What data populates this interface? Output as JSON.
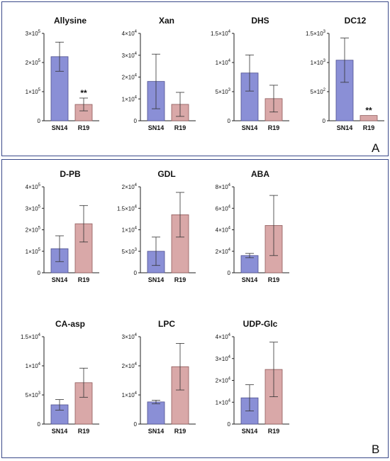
{
  "panels": [
    {
      "label": "A"
    },
    {
      "label": "B"
    }
  ],
  "colors": {
    "SN14": "#8a8fd6",
    "R19": "#d9a8a8",
    "SN14_stroke": "#4d4f8f",
    "R19_stroke": "#8f5a5a"
  },
  "chart_data": [
    {
      "type": "bar",
      "panel": "A",
      "title": "Allysine",
      "categories": [
        "SN14",
        "R19"
      ],
      "values": [
        220000,
        56000
      ],
      "error": [
        50000,
        22000
      ],
      "ylim": [
        0,
        300000
      ],
      "ticks": [
        {
          "v": 0,
          "label": "0",
          "sup": ""
        },
        {
          "v": 100000,
          "label": "1×10",
          "sup": "5"
        },
        {
          "v": 200000,
          "label": "2×10",
          "sup": "5"
        },
        {
          "v": 300000,
          "label": "3×10",
          "sup": "5"
        }
      ],
      "annotations": [
        {
          "category": "R19",
          "text": "**"
        }
      ]
    },
    {
      "type": "bar",
      "panel": "A",
      "title": "Xan",
      "categories": [
        "SN14",
        "R19"
      ],
      "values": [
        18000,
        7500
      ],
      "error": [
        12500,
        5500
      ],
      "ylim": [
        0,
        40000
      ],
      "ticks": [
        {
          "v": 0,
          "label": "0",
          "sup": ""
        },
        {
          "v": 10000,
          "label": "1×10",
          "sup": "4"
        },
        {
          "v": 20000,
          "label": "2×10",
          "sup": "4"
        },
        {
          "v": 30000,
          "label": "3×10",
          "sup": "4"
        },
        {
          "v": 40000,
          "label": "4×10",
          "sup": "4"
        }
      ],
      "annotations": []
    },
    {
      "type": "bar",
      "panel": "A",
      "title": "DHS",
      "categories": [
        "SN14",
        "R19"
      ],
      "values": [
        8200,
        3800
      ],
      "error": [
        3100,
        2300
      ],
      "ylim": [
        0,
        15000
      ],
      "ticks": [
        {
          "v": 0,
          "label": "0",
          "sup": ""
        },
        {
          "v": 5000,
          "label": "5×10",
          "sup": "3"
        },
        {
          "v": 10000,
          "label": "1×10",
          "sup": "4"
        },
        {
          "v": 15000,
          "label": "1.5×10",
          "sup": "4"
        }
      ],
      "annotations": []
    },
    {
      "type": "bar",
      "panel": "A",
      "title": "DC12",
      "categories": [
        "SN14",
        "R19"
      ],
      "values": [
        1040,
        90
      ],
      "error": [
        380,
        0
      ],
      "ylim": [
        0,
        1500
      ],
      "ticks": [
        {
          "v": 0,
          "label": "0",
          "sup": ""
        },
        {
          "v": 500,
          "label": "5×10",
          "sup": "2"
        },
        {
          "v": 1000,
          "label": "1×10",
          "sup": "3"
        },
        {
          "v": 1500,
          "label": "1.5×10",
          "sup": "3"
        }
      ],
      "annotations": [
        {
          "category": "R19",
          "text": "**"
        }
      ]
    },
    {
      "type": "bar",
      "panel": "B",
      "title": "D-PB",
      "categories": [
        "SN14",
        "R19"
      ],
      "values": [
        112000,
        228000
      ],
      "error": [
        60000,
        85000
      ],
      "ylim": [
        0,
        400000
      ],
      "ticks": [
        {
          "v": 0,
          "label": "0",
          "sup": ""
        },
        {
          "v": 100000,
          "label": "1×10",
          "sup": "5"
        },
        {
          "v": 200000,
          "label": "2×10",
          "sup": "5"
        },
        {
          "v": 300000,
          "label": "3×10",
          "sup": "5"
        },
        {
          "v": 400000,
          "label": "4×10",
          "sup": "5"
        }
      ],
      "annotations": []
    },
    {
      "type": "bar",
      "panel": "B",
      "title": "GDL",
      "categories": [
        "SN14",
        "R19"
      ],
      "values": [
        5000,
        13500
      ],
      "error": [
        3300,
        5200
      ],
      "ylim": [
        0,
        20000
      ],
      "ticks": [
        {
          "v": 0,
          "label": "0",
          "sup": ""
        },
        {
          "v": 5000,
          "label": "5×10",
          "sup": "3"
        },
        {
          "v": 10000,
          "label": "1×10",
          "sup": "4"
        },
        {
          "v": 15000,
          "label": "1.5×10",
          "sup": "4"
        },
        {
          "v": 20000,
          "label": "2×10",
          "sup": "4"
        }
      ],
      "annotations": []
    },
    {
      "type": "bar",
      "panel": "B",
      "title": "ABA",
      "categories": [
        "SN14",
        "R19"
      ],
      "values": [
        16000,
        44000
      ],
      "error": [
        2000,
        28000
      ],
      "ylim": [
        0,
        80000
      ],
      "ticks": [
        {
          "v": 0,
          "label": "0",
          "sup": ""
        },
        {
          "v": 20000,
          "label": "2×10",
          "sup": "4"
        },
        {
          "v": 40000,
          "label": "4×10",
          "sup": "4"
        },
        {
          "v": 60000,
          "label": "6×10",
          "sup": "4"
        },
        {
          "v": 80000,
          "label": "8×10",
          "sup": "4"
        }
      ],
      "annotations": []
    },
    {
      "type": "bar",
      "panel": "B",
      "title": "CA-asp",
      "categories": [
        "SN14",
        "R19"
      ],
      "values": [
        3300,
        7100
      ],
      "error": [
        900,
        2500
      ],
      "ylim": [
        0,
        15000
      ],
      "ticks": [
        {
          "v": 0,
          "label": "0",
          "sup": ""
        },
        {
          "v": 5000,
          "label": "5×10",
          "sup": "3"
        },
        {
          "v": 10000,
          "label": "1×10",
          "sup": "4"
        },
        {
          "v": 15000,
          "label": "1.5×10",
          "sup": "4"
        }
      ],
      "annotations": []
    },
    {
      "type": "bar",
      "panel": "B",
      "title": "LPC",
      "categories": [
        "SN14",
        "R19"
      ],
      "values": [
        7600,
        19700
      ],
      "error": [
        600,
        8000
      ],
      "ylim": [
        0,
        30000
      ],
      "ticks": [
        {
          "v": 0,
          "label": "0",
          "sup": ""
        },
        {
          "v": 10000,
          "label": "1×10",
          "sup": "4"
        },
        {
          "v": 20000,
          "label": "2×10",
          "sup": "4"
        },
        {
          "v": 30000,
          "label": "3×10",
          "sup": "4"
        }
      ],
      "annotations": []
    },
    {
      "type": "bar",
      "panel": "B",
      "title": "UDP-Glc",
      "categories": [
        "SN14",
        "R19"
      ],
      "values": [
        12000,
        25000
      ],
      "error": [
        6000,
        12500
      ],
      "ylim": [
        0,
        40000
      ],
      "ticks": [
        {
          "v": 0,
          "label": "0",
          "sup": ""
        },
        {
          "v": 10000,
          "label": "1×10",
          "sup": "4"
        },
        {
          "v": 20000,
          "label": "2×10",
          "sup": "4"
        },
        {
          "v": 30000,
          "label": "3×10",
          "sup": "4"
        },
        {
          "v": 40000,
          "label": "4×10",
          "sup": "4"
        }
      ],
      "annotations": []
    }
  ]
}
